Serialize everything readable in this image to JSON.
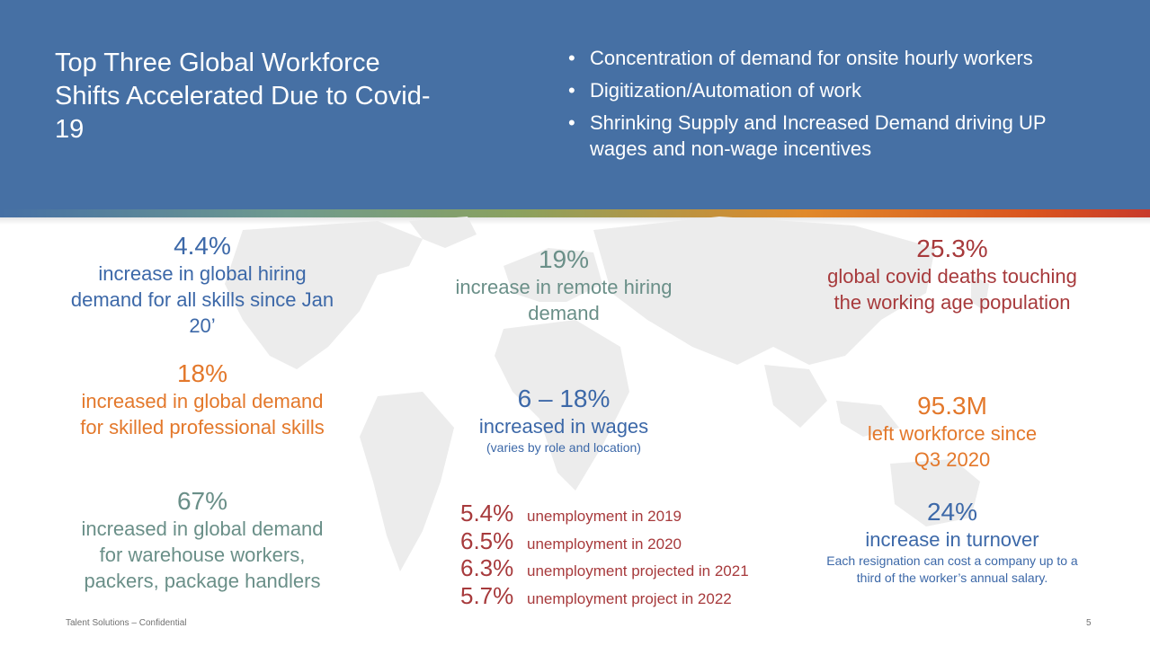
{
  "header": {
    "title": "Top Three Global Workforce Shifts Accelerated Due to Covid-19",
    "bullets": [
      "Concentration of demand for onsite hourly workers",
      "Digitization/Automation of work",
      "Shrinking Supply and Increased Demand driving UP wages and non-wage incentives"
    ]
  },
  "stats": {
    "hiring": {
      "value": "4.4%",
      "text": "increase in global hiring demand for all skills since Jan 20’"
    },
    "skilled": {
      "value": "18%",
      "text": "increased in global demand for skilled professional skills"
    },
    "warehouse": {
      "value": "67%",
      "text": "increased in global demand for warehouse workers, packers, package handlers"
    },
    "remote": {
      "value": "19%",
      "text": "increase in remote hiring demand"
    },
    "wages": {
      "value": "6 – 18%",
      "text": "increased in wages",
      "note": "(varies by role and location)"
    },
    "deaths": {
      "value": "25.3%",
      "text": "global covid deaths touching the working age population"
    },
    "left": {
      "value": "95.3M",
      "text": "left workforce since Q3 2020"
    },
    "turnover": {
      "value": "24%",
      "text": "increase in turnover",
      "note": "Each resignation can cost a company up to a third of the worker’s annual salary."
    }
  },
  "unemployment": [
    {
      "value": "5.4%",
      "label": "unemployment in 2019"
    },
    {
      "value": "6.5%",
      "label": "unemployment in 2020"
    },
    {
      "value": "6.3%",
      "label": "unemployment projected in 2021"
    },
    {
      "value": "5.7%",
      "label": "unemployment project in 2022"
    }
  ],
  "footer": {
    "text": "Talent Solutions – Confidential",
    "page": "5"
  },
  "colors": {
    "header": "#4670a4",
    "blue": "#3c68a8",
    "orange": "#e3782b",
    "teal": "#6a8f88",
    "red": "#a73a3c"
  }
}
